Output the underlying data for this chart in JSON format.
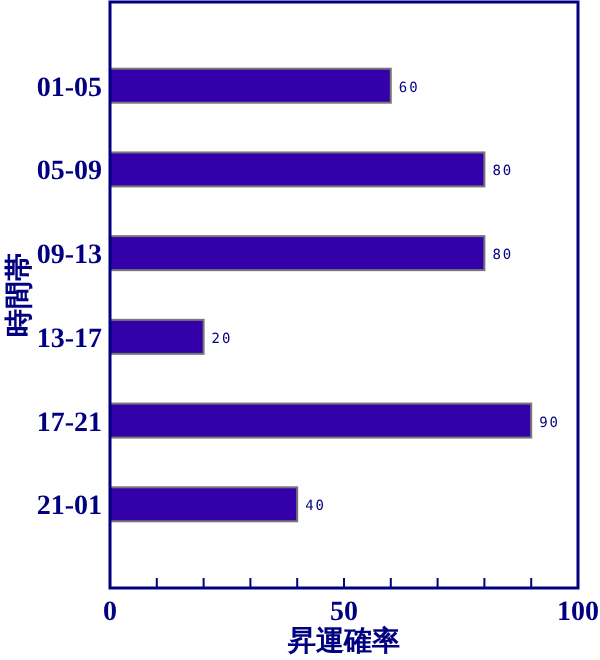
{
  "chart_data": {
    "type": "bar",
    "orientation": "horizontal",
    "xlabel": "昇運確率",
    "ylabel": "時間帯",
    "categories": [
      "01-05",
      "05-09",
      "09-13",
      "13-17",
      "17-21",
      "21-01"
    ],
    "values": [
      60,
      80,
      80,
      20,
      90,
      40
    ],
    "color": "#3300aa",
    "data_labels": true,
    "xlim": [
      0,
      100
    ],
    "xticks": [
      0,
      {
        "value": 10,
        "label": null
      },
      {
        "value": 20,
        "label": null
      },
      {
        "value": 30,
        "label": null
      },
      {
        "value": 40,
        "label": null
      },
      50,
      {
        "value": 60,
        "label": null
      },
      {
        "value": 70,
        "label": null
      },
      {
        "value": 80,
        "label": null
      },
      {
        "value": 90,
        "label": null
      },
      100
    ],
    "grid": false
  }
}
